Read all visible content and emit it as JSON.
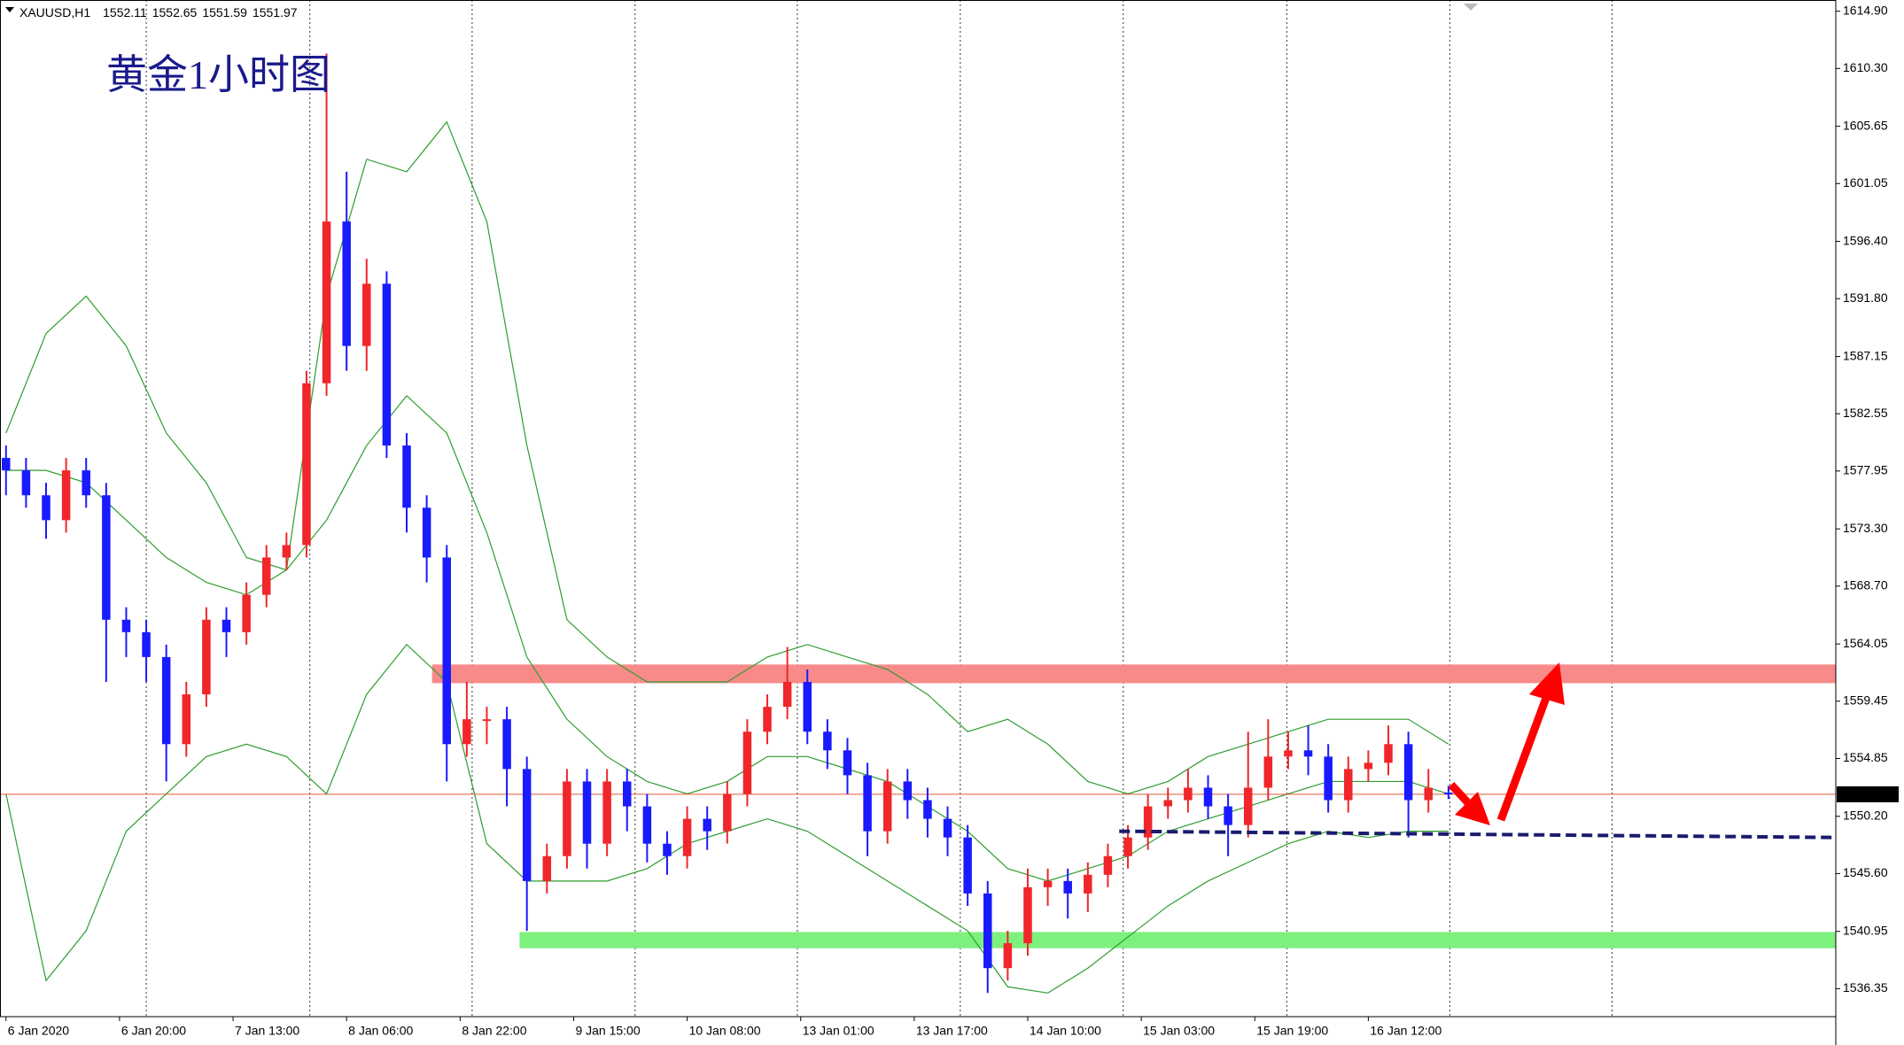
{
  "chart_data": {
    "type": "candlestick",
    "symbol": "XAUUSD,H1",
    "title": "黄金1小时图",
    "x": [
      0,
      3,
      6,
      9,
      12,
      15,
      18,
      21,
      24,
      27,
      30,
      33,
      36,
      39,
      42,
      45,
      48,
      51,
      54,
      57,
      60,
      63,
      66,
      69,
      72,
      75,
      78,
      81,
      84,
      87,
      90,
      93,
      96,
      99,
      102,
      105,
      108,
      111,
      114,
      117,
      120,
      123,
      126,
      129,
      132,
      135,
      138,
      141,
      144,
      147,
      150,
      153,
      156,
      159,
      162,
      165,
      168,
      171,
      174,
      177,
      180,
      183,
      186,
      189,
      192,
      195,
      198,
      201,
      204,
      207,
      210,
      213,
      216
    ],
    "open": [
      1579,
      1578,
      1576,
      1574,
      1578,
      1576,
      1566,
      1565,
      1563,
      1556,
      1560,
      1566,
      1565,
      1568,
      1571,
      1572,
      1585,
      1598,
      1588,
      1593,
      1580,
      1575,
      1571,
      1556,
      1558,
      1558,
      1554,
      1545,
      1547,
      1553,
      1548,
      1553,
      1551,
      1548,
      1547,
      1550,
      1549,
      1552,
      1557,
      1559,
      1561,
      1557,
      1555.5,
      1553.5,
      1549,
      1553,
      1551.5,
      1550,
      1548.5,
      1544,
      1538,
      1540,
      1544.5,
      1545,
      1544,
      1545.5,
      1547,
      1548.5,
      1551,
      1551.5,
      1552.5,
      1551,
      1549.5,
      1552.5,
      1555,
      1555.5,
      1555,
      1551.5,
      1554,
      1554.5,
      1556,
      1551.5,
      1552.11
    ],
    "high": [
      1580,
      1579,
      1577,
      1579,
      1579,
      1577,
      1567,
      1566,
      1564,
      1561,
      1567,
      1567,
      1569,
      1572,
      1573,
      1586,
      1611.5,
      1602,
      1595,
      1594,
      1581,
      1576,
      1572,
      1561,
      1559,
      1559,
      1555,
      1548,
      1554,
      1554,
      1554,
      1554,
      1552,
      1549,
      1551,
      1551,
      1553,
      1558,
      1560,
      1563.8,
      1562,
      1558,
      1556.5,
      1554.5,
      1554,
      1554,
      1552.5,
      1551,
      1549.5,
      1545,
      1541,
      1546,
      1546,
      1546,
      1546.5,
      1548,
      1549.5,
      1552,
      1552.5,
      1554,
      1553.5,
      1552,
      1557,
      1558,
      1557,
      1557.5,
      1556,
      1555,
      1555.5,
      1557.5,
      1557,
      1554,
      1552.65
    ],
    "low": [
      1576,
      1575,
      1572.5,
      1573,
      1575,
      1561,
      1563,
      1561,
      1553,
      1555,
      1559,
      1563,
      1564,
      1567,
      1570,
      1571,
      1584,
      1586,
      1586,
      1579,
      1573,
      1569,
      1553,
      1555,
      1556,
      1551,
      1541,
      1544,
      1546,
      1546,
      1547,
      1549,
      1546.5,
      1545.5,
      1546,
      1547.5,
      1548,
      1551,
      1556,
      1558,
      1556,
      1554,
      1552,
      1547,
      1548,
      1550,
      1548.5,
      1547,
      1543,
      1536,
      1537,
      1539,
      1543,
      1542,
      1542.5,
      1544.5,
      1546,
      1547.5,
      1550,
      1550.5,
      1550,
      1547,
      1548.5,
      1551.5,
      1554,
      1553.5,
      1550.5,
      1550.5,
      1553,
      1553.5,
      1548.5,
      1550.5,
      1551.59
    ],
    "close": [
      1578,
      1576,
      1574,
      1578,
      1576,
      1566,
      1565,
      1563,
      1556,
      1560,
      1566,
      1565,
      1568,
      1571,
      1572,
      1585,
      1598,
      1588,
      1593,
      1580,
      1575,
      1571,
      1556,
      1558,
      1558,
      1554,
      1545,
      1547,
      1553,
      1548,
      1553,
      1551,
      1548,
      1547,
      1550,
      1549,
      1552,
      1557,
      1559,
      1561,
      1557,
      1555.5,
      1553.5,
      1549,
      1553,
      1551.5,
      1550,
      1548.5,
      1544,
      1538,
      1540,
      1544.5,
      1545,
      1544,
      1545.5,
      1547,
      1548.5,
      1551,
      1551.5,
      1552.5,
      1551,
      1549.5,
      1552.5,
      1555,
      1555.5,
      1555,
      1551.5,
      1554,
      1554.5,
      1556,
      1551.5,
      1552.5,
      1551.97
    ],
    "up_color": "#f0262a",
    "down_color": "#1a1aff",
    "band_x": [
      0,
      6,
      12,
      18,
      24,
      30,
      36,
      42,
      48,
      54,
      60,
      66,
      72,
      78,
      84,
      90,
      96,
      102,
      108,
      114,
      120,
      126,
      132,
      138,
      144,
      150,
      156,
      162,
      168,
      174,
      180,
      186,
      192,
      198,
      204,
      210,
      216
    ],
    "bands": [
      {
        "color": "#2e9d2e",
        "values": [
          1581,
          1589,
          1592,
          1588,
          1581,
          1577,
          1571,
          1570,
          1592,
          1603,
          1602,
          1606,
          1598,
          1580,
          1566,
          1563,
          1561,
          1561,
          1561,
          1563,
          1564,
          1563,
          1562,
          1560,
          1557,
          1558,
          1556,
          1553,
          1552,
          1553,
          1555,
          1556,
          1557,
          1558,
          1558,
          1558,
          1556
        ]
      },
      {
        "color": "#2e9d2e",
        "values": [
          1578,
          1578,
          1577,
          1574,
          1571,
          1569,
          1568,
          1570,
          1574,
          1580,
          1584,
          1581,
          1573,
          1563,
          1558,
          1555,
          1553,
          1552,
          1553,
          1555,
          1555,
          1554,
          1553,
          1551,
          1549,
          1546,
          1545,
          1546,
          1547,
          1549,
          1550,
          1551,
          1552,
          1553,
          1553,
          1553,
          1552
        ]
      },
      {
        "color": "#2e9d2e",
        "values": [
          1552,
          1537,
          1541,
          1549,
          1552,
          1555,
          1556,
          1555,
          1552,
          1560,
          1564,
          1561,
          1548,
          1545,
          1545,
          1545,
          1546,
          1548,
          1549,
          1550,
          1549,
          1547,
          1545,
          1543,
          1541,
          1536.5,
          1536,
          1538,
          1540.5,
          1543,
          1545,
          1546.5,
          1548,
          1549,
          1548.5,
          1549,
          1549
        ]
      }
    ],
    "zones": [
      {
        "color": "#f98a8a",
        "range": [
          1560.9,
          1562.4
        ],
        "from": 63.8
      },
      {
        "color": "#7ef07e",
        "range": [
          1539.6,
          1540.9
        ],
        "from": 76.9
      }
    ],
    "support_line": {
      "color": "#1a1a6e",
      "x": [
        166.7,
        274
      ],
      "values": [
        1549.0,
        1548.5
      ]
    },
    "price_line_color": "#e05a3a",
    "xlim": [
      -0.9,
      274
    ],
    "ylim": [
      1534.1,
      1615.8
    ],
    "xticks": [
      {
        "value": 0,
        "label": "6 Jan 2020"
      },
      {
        "value": 17,
        "label": "6 Jan 20:00"
      },
      {
        "value": 34,
        "label": "7 Jan 13:00"
      },
      {
        "value": 51,
        "label": "8 Jan 06:00"
      },
      {
        "value": 68,
        "label": "8 Jan 22:00"
      },
      {
        "value": 85,
        "label": "9 Jan 15:00"
      },
      {
        "value": 102,
        "label": "10 Jan 08:00"
      },
      {
        "value": 119,
        "label": "13 Jan 01:00"
      },
      {
        "value": 136,
        "label": "13 Jan 17:00"
      },
      {
        "value": 153,
        "label": "14 Jan 10:00"
      },
      {
        "value": 170,
        "label": "15 Jan 03:00"
      },
      {
        "value": 187,
        "label": "15 Jan 19:00"
      },
      {
        "value": 204,
        "label": "16 Jan 12:00"
      }
    ],
    "xgrid": [
      21,
      45.5,
      69.8,
      94.2,
      118.5,
      142.9,
      167.3,
      191.8,
      216.2,
      240.5
    ],
    "yticks": [
      {
        "value": 1614.9,
        "label": "1614.90"
      },
      {
        "value": 1610.3,
        "label": "1610.30"
      },
      1605.65,
      1601.05,
      {
        "value": 1596.4,
        "label": "1596.40"
      },
      {
        "value": 1591.8,
        "label": "1591.80"
      },
      1587.15,
      1582.55,
      1577.95,
      {
        "value": 1573.3,
        "label": "1573.30"
      },
      {
        "value": 1568.7,
        "label": "1568.70"
      },
      1564.05,
      1559.45,
      1554.85,
      {
        "value": 1550.2,
        "label": "1550.20"
      },
      {
        "value": 1545.6,
        "label": "1545.60"
      },
      1540.95,
      1536.35
    ]
  }
}
